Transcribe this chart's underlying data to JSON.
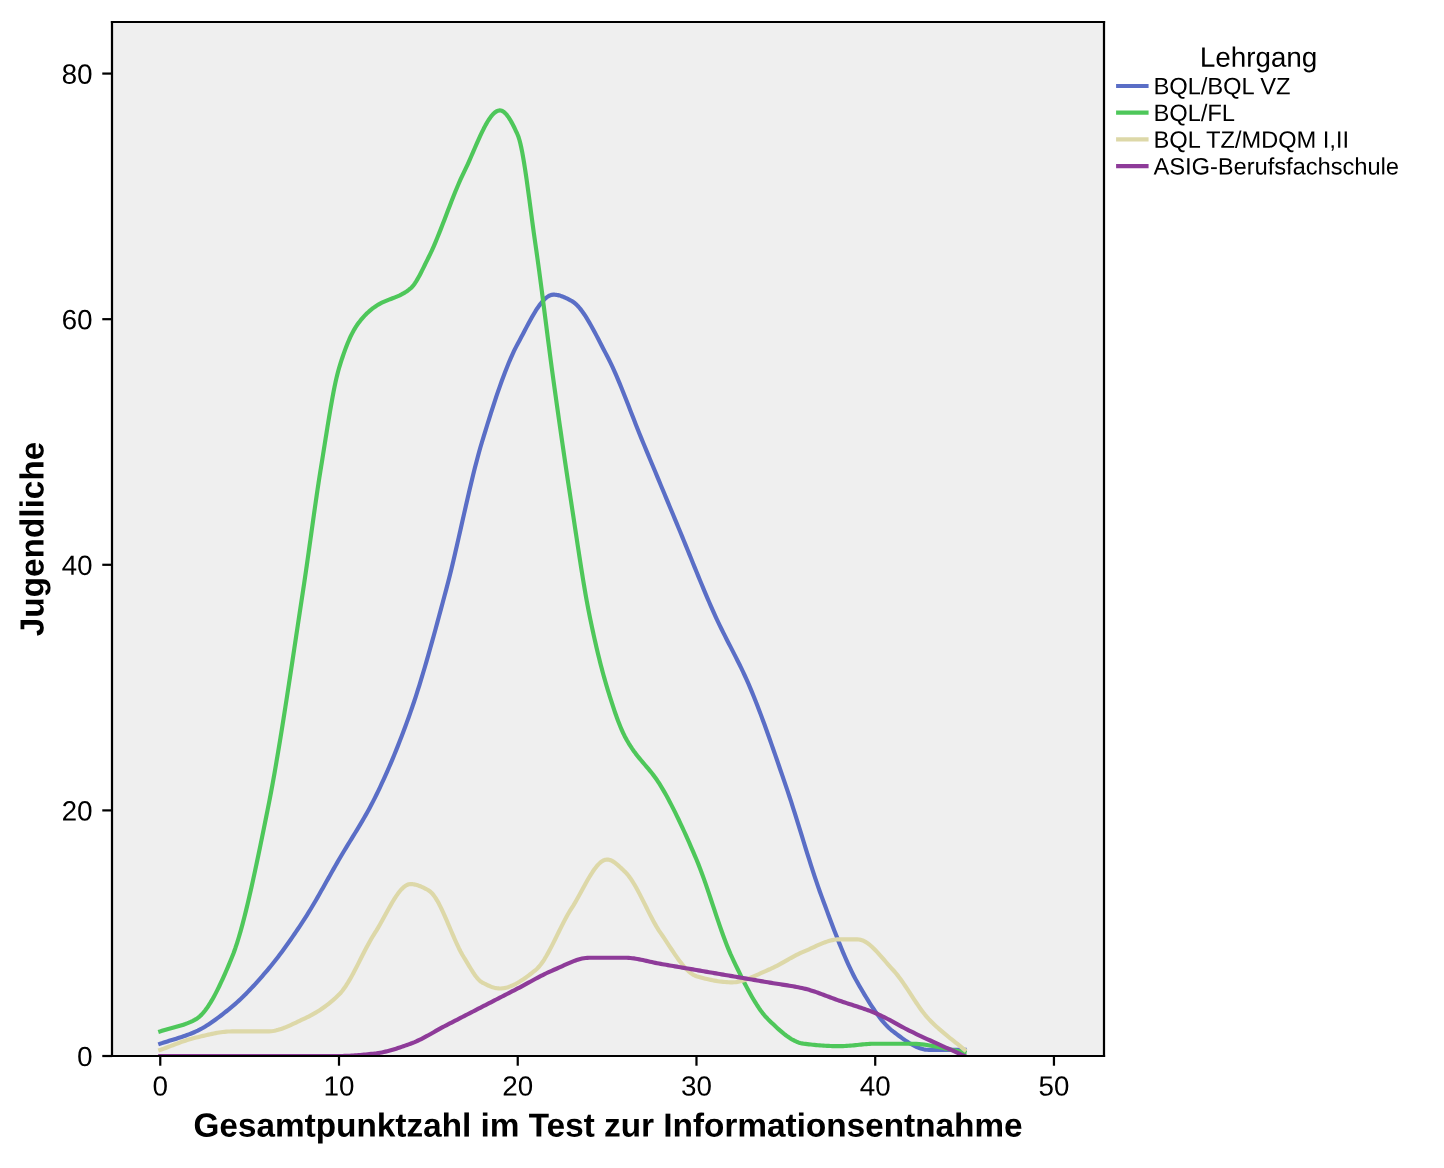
{
  "chart_data": {
    "type": "line",
    "xlabel": "Gesamtpunktzahl im Test zur Informationsentnahme",
    "ylabel": "Jugendliche",
    "legend_title": "Lehrgang",
    "legend": "top right",
    "grid": false,
    "marker": "none",
    "line_style": "solid",
    "xlim": [
      -2.7,
      52.8
    ],
    "xticks": [
      0,
      10,
      20,
      30,
      40,
      50
    ],
    "ylim": [
      0,
      84.2
    ],
    "yticks": [
      0,
      20,
      40,
      60,
      80
    ],
    "series": [
      {
        "name": "BQL/BQL VZ",
        "color": "#5a6ec6",
        "x": [
          0,
          2,
          4,
          6,
          8,
          10,
          12,
          14,
          16,
          18,
          20,
          22,
          23,
          25,
          27,
          29,
          31,
          33,
          35,
          37,
          39,
          41,
          43,
          45
        ],
        "values": [
          1,
          2,
          4,
          7,
          11,
          16,
          21,
          28,
          38,
          50,
          58,
          62,
          61.5,
          57,
          50,
          43,
          36,
          30,
          22,
          13,
          6,
          2,
          0.5,
          0.5
        ]
      },
      {
        "name": "BQL/FL",
        "color": "#4ec75a",
        "x": [
          0,
          2,
          4,
          6,
          8,
          9,
          10,
          11,
          12,
          14,
          15,
          17,
          19,
          20,
          21,
          22,
          23,
          24,
          25,
          26,
          28,
          30,
          32,
          34,
          36,
          38,
          40,
          42,
          45
        ],
        "values": [
          2,
          3,
          8,
          20,
          38,
          48,
          56,
          59.5,
          61,
          62.5,
          65,
          72,
          77,
          75,
          66,
          55,
          45,
          36,
          30,
          26,
          22,
          16,
          8,
          3,
          1,
          0.8,
          1,
          1,
          0.3
        ]
      },
      {
        "name": "BQL TZ/MDQM I,II",
        "color": "#ddd8a8",
        "x": [
          0,
          2,
          4,
          6,
          8,
          10,
          12,
          14,
          15,
          17,
          18,
          19,
          21,
          23,
          25,
          26,
          28,
          30,
          32,
          34,
          36,
          38,
          39,
          41,
          43,
          45
        ],
        "values": [
          0.5,
          1.5,
          2,
          2,
          3,
          5,
          10,
          14,
          13.5,
          8,
          6,
          5.5,
          7,
          12,
          16,
          15,
          10,
          6.5,
          6,
          7,
          8.5,
          9.5,
          9.5,
          7,
          3,
          0.5
        ]
      },
      {
        "name": "ASIG-Berufsfachschule",
        "color": "#8e3b99",
        "x": [
          0,
          5,
          10,
          12,
          14,
          16,
          18,
          20,
          22,
          24,
          26,
          28,
          30,
          32,
          34,
          36,
          38,
          40,
          42,
          45
        ],
        "values": [
          0,
          0,
          0,
          0.2,
          1,
          2.5,
          4,
          5.5,
          7,
          8,
          8,
          7.5,
          7,
          6.5,
          6,
          5.5,
          4.5,
          3.5,
          2,
          0
        ]
      }
    ]
  }
}
